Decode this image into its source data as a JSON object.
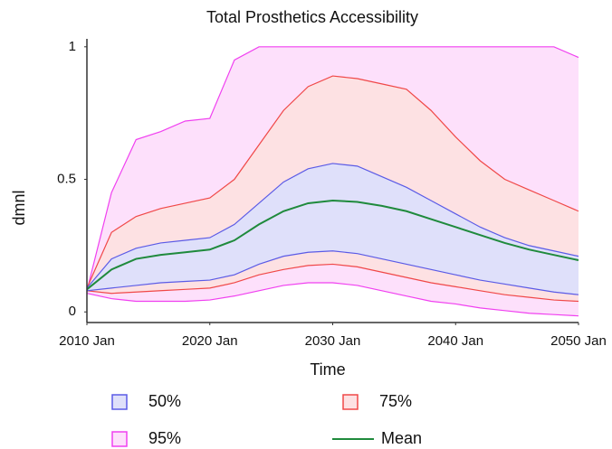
{
  "chart_data": {
    "type": "fan",
    "title": "Total Prosthetics Accessibility",
    "x_label": "Time",
    "y_label": "dmnl",
    "x": [
      2010,
      2012,
      2014,
      2016,
      2018,
      2020,
      2022,
      2024,
      2026,
      2028,
      2030,
      2032,
      2034,
      2036,
      2038,
      2040,
      2042,
      2044,
      2046,
      2048,
      2050
    ],
    "xlim": [
      2010,
      2050
    ],
    "xticks": [
      {
        "value": 2010,
        "label": "2010 Jan"
      },
      {
        "value": 2020,
        "label": "2020 Jan"
      },
      {
        "value": 2030,
        "label": "2030 Jan"
      },
      {
        "value": 2040,
        "label": "2040 Jan"
      },
      {
        "value": 2050,
        "label": "2050 Jan"
      }
    ],
    "ylim": [
      -0.04,
      1.03
    ],
    "yticks": [
      0,
      0.5,
      1
    ],
    "series": [
      {
        "name": "50%",
        "color": "#5b5be6",
        "fill": "#dfe0fa",
        "upper": [
          0.09,
          0.2,
          0.24,
          0.26,
          0.27,
          0.28,
          0.33,
          0.41,
          0.49,
          0.54,
          0.56,
          0.55,
          0.51,
          0.47,
          0.42,
          0.37,
          0.32,
          0.28,
          0.25,
          0.23,
          0.21
        ],
        "lower": [
          0.08,
          0.09,
          0.1,
          0.11,
          0.115,
          0.12,
          0.14,
          0.18,
          0.21,
          0.225,
          0.23,
          0.22,
          0.2,
          0.18,
          0.16,
          0.14,
          0.12,
          0.105,
          0.09,
          0.075,
          0.065
        ]
      },
      {
        "name": "75%",
        "color": "#f04848",
        "fill": "#fde1e3",
        "upper": [
          0.09,
          0.3,
          0.36,
          0.39,
          0.41,
          0.43,
          0.5,
          0.63,
          0.76,
          0.85,
          0.89,
          0.88,
          0.86,
          0.84,
          0.76,
          0.66,
          0.57,
          0.5,
          0.46,
          0.42,
          0.38
        ],
        "lower": [
          0.08,
          0.07,
          0.075,
          0.08,
          0.085,
          0.09,
          0.11,
          0.14,
          0.16,
          0.175,
          0.18,
          0.17,
          0.15,
          0.13,
          0.11,
          0.095,
          0.08,
          0.065,
          0.055,
          0.045,
          0.04
        ]
      },
      {
        "name": "95%",
        "color": "#f040f0",
        "fill": "#fde0fb",
        "upper": [
          0.08,
          0.45,
          0.65,
          0.68,
          0.72,
          0.73,
          0.95,
          1.0,
          1.0,
          1.0,
          1.0,
          1.0,
          1.0,
          1.0,
          1.0,
          1.0,
          1.0,
          1.0,
          1.0,
          1.0,
          0.96
        ],
        "lower": [
          0.07,
          0.05,
          0.04,
          0.04,
          0.04,
          0.045,
          0.06,
          0.08,
          0.1,
          0.11,
          0.11,
          0.1,
          0.08,
          0.06,
          0.04,
          0.03,
          0.015,
          0.005,
          -0.005,
          -0.01,
          -0.015
        ]
      },
      {
        "name": "Mean",
        "color": "#1f8a3c",
        "values": [
          0.085,
          0.16,
          0.2,
          0.215,
          0.225,
          0.235,
          0.27,
          0.33,
          0.38,
          0.41,
          0.42,
          0.415,
          0.4,
          0.38,
          0.35,
          0.32,
          0.29,
          0.26,
          0.235,
          0.215,
          0.195
        ]
      }
    ]
  }
}
